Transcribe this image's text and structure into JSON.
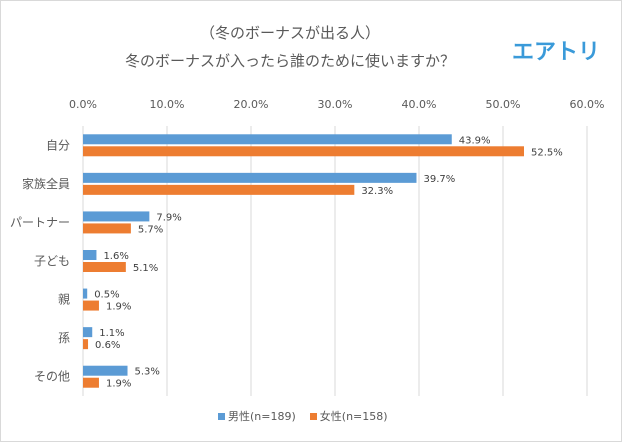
{
  "chart_data": {
    "type": "bar",
    "orientation": "horizontal",
    "title_line1": "（冬のボーナスが出る人）",
    "title_line2": "冬のボーナスが入ったら誰のために使いますか？",
    "logo": "エアトリ",
    "xlim": [
      0,
      60
    ],
    "xticks": [
      "0.0%",
      "10.0%",
      "20.0%",
      "30.0%",
      "40.0%",
      "50.0%",
      "60.0%"
    ],
    "xtick_values": [
      0,
      10,
      20,
      30,
      40,
      50,
      60
    ],
    "grid": true,
    "legend_position": "bottom",
    "categories": [
      "自分",
      "家族全員",
      "パートナー",
      "子ども",
      "親",
      "孫",
      "その他"
    ],
    "series": [
      {
        "name": "男性(n=189)",
        "color": "#5b9bd5",
        "values": [
          43.9,
          39.7,
          7.9,
          1.6,
          0.5,
          1.1,
          5.3
        ],
        "labels": [
          "43.9%",
          "39.7%",
          "7.9%",
          "1.6%",
          "0.5%",
          "1.1%",
          "5.3%"
        ]
      },
      {
        "name": "女性(n=158)",
        "color": "#ed7d31",
        "values": [
          52.5,
          32.3,
          5.7,
          5.1,
          1.9,
          0.6,
          1.9
        ],
        "labels": [
          "52.5%",
          "32.3%",
          "5.7%",
          "5.1%",
          "1.9%",
          "0.6%",
          "1.9%"
        ]
      }
    ]
  }
}
